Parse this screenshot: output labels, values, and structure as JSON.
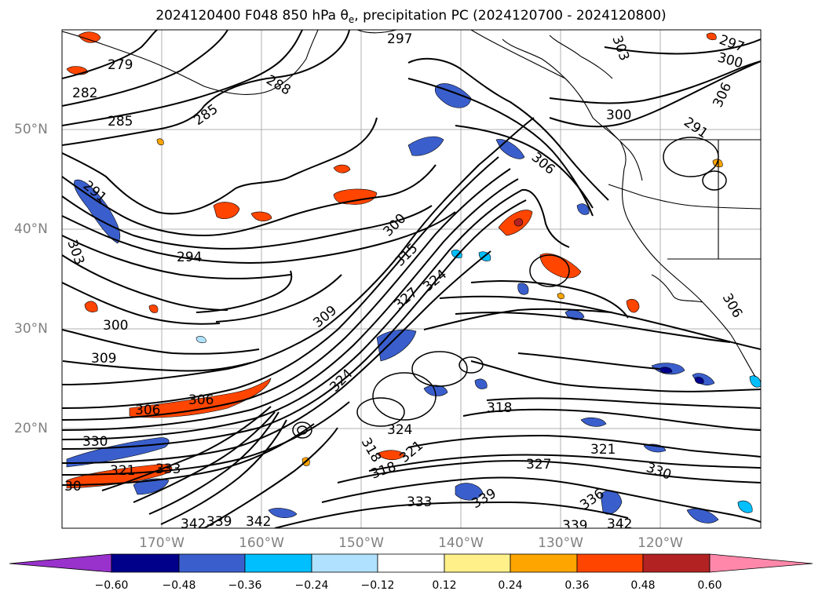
{
  "title": {
    "main": "2024120400 F048 850 hPa θ",
    "subscript": "e",
    "rest": ", precipitation PC (2024120700 - 2024120800)"
  },
  "map": {
    "latitude_labels": [
      {
        "value": 50,
        "text": "50°N"
      },
      {
        "value": 40,
        "text": "40°N"
      },
      {
        "value": 30,
        "text": "30°N"
      },
      {
        "value": 20,
        "text": "20°N"
      }
    ],
    "longitude_labels": [
      {
        "value": -170,
        "text": "170°W"
      },
      {
        "value": -160,
        "text": "160°W"
      },
      {
        "value": -150,
        "text": "150°W"
      },
      {
        "value": -140,
        "text": "140°W"
      },
      {
        "value": -130,
        "text": "130°W"
      },
      {
        "value": -120,
        "text": "120°W"
      }
    ],
    "contour_labels": [
      "279",
      "282",
      "285",
      "285",
      "288",
      "291",
      "297",
      "297",
      "300",
      "300",
      "300",
      "303",
      "306",
      "306",
      "306",
      "306",
      "306",
      "303",
      "294",
      "291",
      "309",
      "309",
      "300",
      "315",
      "324",
      "327",
      "330",
      "321",
      "333",
      "324",
      "318",
      "324",
      "321",
      "318",
      "327",
      "330",
      "333",
      "336",
      "339",
      "339",
      "342",
      "342",
      "339",
      "321",
      "318",
      "30"
    ]
  },
  "colorbar": {
    "tick_labels": [
      "−0.60",
      "−0.48",
      "−0.36",
      "−0.24",
      "−0.12",
      "0.12",
      "0.24",
      "0.36",
      "0.48",
      "0.60"
    ],
    "colors": [
      "#9932cc",
      "#00008b",
      "#3a5fcd",
      "#00bfff",
      "#b0e2ff",
      "#ffffff",
      "#fff08a",
      "#ffa500",
      "#ff4500",
      "#b22222",
      "#ff88aa"
    ]
  }
}
